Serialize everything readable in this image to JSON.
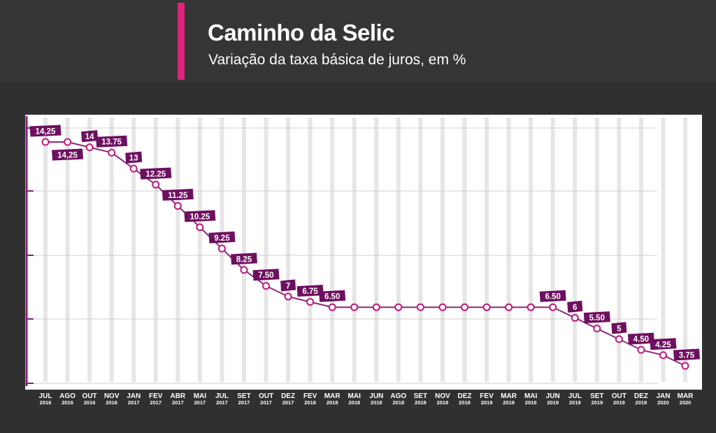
{
  "header": {
    "title": "Caminho da Selic",
    "subtitle": "Variação da taxa básica de juros, em %"
  },
  "colors": {
    "background": "#303030",
    "header_background": "#353535",
    "accent": "#e0247c",
    "line": "#8b2a78",
    "label_badge": "#6e1060",
    "axis": "#8c1a7c"
  },
  "chart_data": {
    "type": "line",
    "title": "Caminho da Selic",
    "subtitle": "Variação da taxa básica de juros, em %",
    "xlabel": "",
    "ylabel": "",
    "ylim": [
      3.2,
      14.9
    ],
    "grid": true,
    "categories": [
      {
        "month": "JUL",
        "year": "2016"
      },
      {
        "month": "AGO",
        "year": "2016"
      },
      {
        "month": "OUT",
        "year": "2016"
      },
      {
        "month": "NOV",
        "year": "2016"
      },
      {
        "month": "JAN",
        "year": "2017"
      },
      {
        "month": "FEV",
        "year": "2017"
      },
      {
        "month": "ABR",
        "year": "2017"
      },
      {
        "month": "MAI",
        "year": "2017"
      },
      {
        "month": "JUL",
        "year": "2017"
      },
      {
        "month": "SET",
        "year": "2017"
      },
      {
        "month": "OUT",
        "year": "2017"
      },
      {
        "month": "DEZ",
        "year": "2017"
      },
      {
        "month": "FEV",
        "year": "2018"
      },
      {
        "month": "MAR",
        "year": "2018"
      },
      {
        "month": "MAI",
        "year": "2018"
      },
      {
        "month": "JUN",
        "year": "2018"
      },
      {
        "month": "AGO",
        "year": "2018"
      },
      {
        "month": "SET",
        "year": "2018"
      },
      {
        "month": "NOV",
        "year": "2018"
      },
      {
        "month": "DEZ",
        "year": "2018"
      },
      {
        "month": "FEV",
        "year": "2019"
      },
      {
        "month": "MAR",
        "year": "2019"
      },
      {
        "month": "MAI",
        "year": "2019"
      },
      {
        "month": "JUN",
        "year": "2019"
      },
      {
        "month": "JUL",
        "year": "2019"
      },
      {
        "month": "SET",
        "year": "2019"
      },
      {
        "month": "OUT",
        "year": "2019"
      },
      {
        "month": "DEZ",
        "year": "2019"
      },
      {
        "month": "JAN",
        "year": "2020"
      },
      {
        "month": "MAR",
        "year": "2020"
      }
    ],
    "values": [
      14.25,
      14.25,
      14,
      13.75,
      13,
      12.25,
      11.25,
      10.25,
      9.25,
      8.25,
      7.5,
      7,
      6.75,
      6.5,
      6.5,
      6.5,
      6.5,
      6.5,
      6.5,
      6.5,
      6.5,
      6.5,
      6.5,
      6.5,
      6,
      5.5,
      5,
      4.5,
      4.25,
      3.75
    ],
    "labels": [
      "14,25",
      "14,25",
      "14",
      "13.75",
      "13",
      "12.25",
      "11.25",
      "10.25",
      "9.25",
      "8.25",
      "7.50",
      "7",
      "6.75",
      "6.50",
      null,
      null,
      null,
      null,
      null,
      null,
      null,
      null,
      null,
      "6.50",
      "6",
      "5.50",
      "5",
      "4.50",
      "4.25",
      "3.75"
    ]
  }
}
